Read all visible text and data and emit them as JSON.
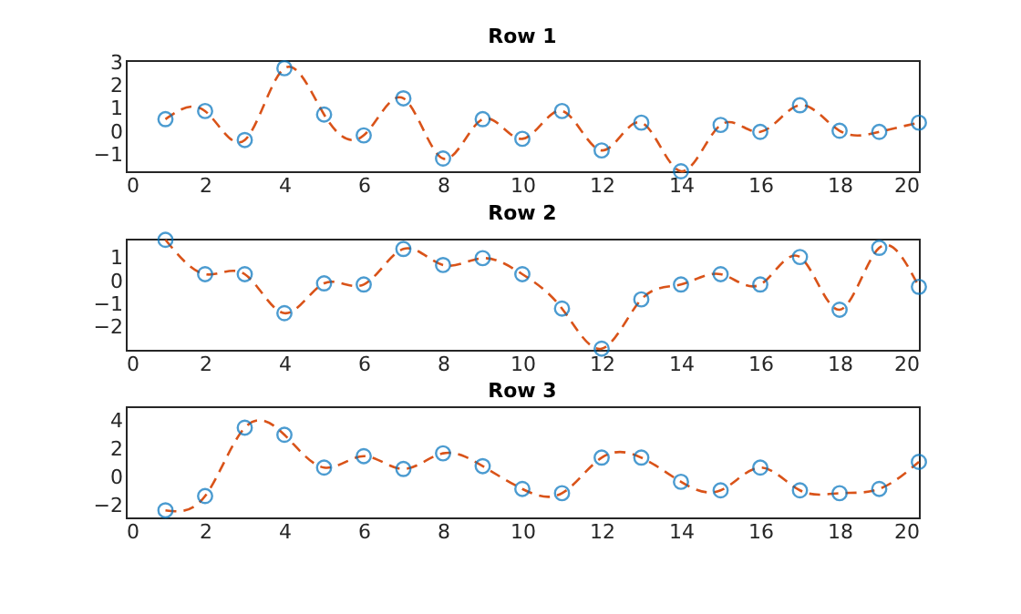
{
  "chart_data": [
    {
      "type": "scatter",
      "title": "Row 1",
      "x": [
        1,
        2,
        3,
        4,
        5,
        6,
        7,
        8,
        9,
        10,
        11,
        12,
        13,
        14,
        15,
        16,
        17,
        18,
        19,
        20
      ],
      "xlim": [
        0,
        20
      ],
      "xticks": [
        0,
        2,
        4,
        6,
        8,
        10,
        12,
        14,
        16,
        18,
        20
      ],
      "ylim": [
        -1.7,
        3.1
      ],
      "yticks": [
        -1,
        0,
        1,
        2,
        3
      ],
      "grid": false,
      "series": [
        {
          "type": "line",
          "color": "#d95319",
          "line_style": "dashed",
          "marker": "none",
          "values": [
            0.55,
            0.9,
            -0.35,
            2.75,
            0.75,
            -0.15,
            1.45,
            -1.15,
            0.55,
            -0.3,
            0.9,
            -0.8,
            0.4,
            -1.7,
            0.3,
            0.0,
            1.15,
            0.05,
            0.0,
            0.4
          ]
        },
        {
          "type": "scatter",
          "color": "#0072bd",
          "marker": "circle",
          "values": [
            0.55,
            0.9,
            -0.35,
            2.75,
            0.75,
            -0.15,
            1.45,
            -1.15,
            0.55,
            -0.3,
            0.9,
            -0.8,
            0.4,
            -1.7,
            0.3,
            0.0,
            1.15,
            0.05,
            0.0,
            0.4
          ]
        }
      ]
    },
    {
      "type": "scatter",
      "title": "Row 2",
      "x": [
        1,
        2,
        3,
        4,
        5,
        6,
        7,
        8,
        9,
        10,
        11,
        12,
        13,
        14,
        15,
        16,
        17,
        18,
        19,
        20
      ],
      "xlim": [
        0,
        20
      ],
      "xticks": [
        0,
        2,
        4,
        6,
        8,
        10,
        12,
        14,
        16,
        18,
        20
      ],
      "ylim": [
        -3,
        1.85
      ],
      "yticks": [
        -2,
        -1,
        0,
        1
      ],
      "grid": false,
      "series": [
        {
          "type": "line",
          "color": "#d95319",
          "line_style": "dashed",
          "marker": "none",
          "values": [
            1.8,
            0.3,
            0.3,
            -1.4,
            -0.1,
            -0.15,
            1.4,
            0.7,
            1.0,
            0.3,
            -1.2,
            -2.95,
            -0.8,
            -0.15,
            0.3,
            -0.15,
            1.05,
            -1.25,
            1.45,
            -0.25
          ]
        },
        {
          "type": "scatter",
          "color": "#0072bd",
          "marker": "circle",
          "values": [
            1.8,
            0.3,
            0.3,
            -1.4,
            -0.1,
            -0.15,
            1.4,
            0.7,
            1.0,
            0.3,
            -1.2,
            -2.95,
            -0.8,
            -0.15,
            0.3,
            -0.15,
            1.05,
            -1.25,
            1.45,
            -0.25
          ]
        }
      ]
    },
    {
      "type": "scatter",
      "title": "Row 3",
      "x": [
        1,
        2,
        3,
        4,
        5,
        6,
        7,
        8,
        9,
        10,
        11,
        12,
        13,
        14,
        15,
        16,
        17,
        18,
        19,
        20
      ],
      "xlim": [
        0,
        20
      ],
      "xticks": [
        0,
        2,
        4,
        6,
        8,
        10,
        12,
        14,
        16,
        18,
        20
      ],
      "ylim": [
        -2.8,
        5
      ],
      "yticks": [
        -2,
        0,
        2,
        4
      ],
      "grid": false,
      "series": [
        {
          "type": "line",
          "color": "#d95319",
          "line_style": "dashed",
          "marker": "none",
          "values": [
            -2.3,
            -1.3,
            3.5,
            3.0,
            0.7,
            1.5,
            0.6,
            1.7,
            0.8,
            -0.8,
            -1.1,
            1.4,
            1.4,
            -0.3,
            -0.9,
            0.7,
            -0.9,
            -1.1,
            -0.8,
            1.1
          ]
        },
        {
          "type": "scatter",
          "color": "#0072bd",
          "marker": "circle",
          "values": [
            -2.3,
            -1.3,
            3.5,
            3.0,
            0.7,
            1.5,
            0.6,
            1.7,
            0.8,
            -0.8,
            -1.1,
            1.4,
            1.4,
            -0.3,
            -0.9,
            0.7,
            -0.9,
            -1.1,
            -0.8,
            1.1
          ]
        }
      ]
    }
  ]
}
